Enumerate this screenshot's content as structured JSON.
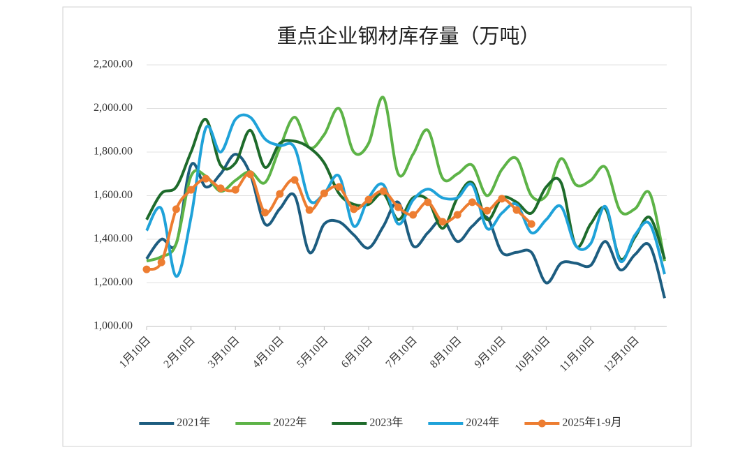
{
  "chart_data": {
    "type": "line",
    "title": "重点企业钢材库存量（万吨）",
    "categories": [
      "1月10日",
      null,
      null,
      "2月10日",
      null,
      null,
      "3月10日",
      null,
      null,
      "4月10日",
      null,
      null,
      "5月10日",
      null,
      null,
      "6月10日",
      null,
      null,
      "7月10日",
      null,
      null,
      "8月10日",
      null,
      null,
      "9月10日",
      null,
      null,
      "10月10日",
      null,
      null,
      "11月10日",
      null,
      null,
      "12月10日",
      null,
      null
    ],
    "ylim": [
      1000,
      2200
    ],
    "yticks": [
      {
        "value": 1000,
        "label": "1,000.00"
      },
      {
        "value": 1200,
        "label": "1,200.00"
      },
      {
        "value": 1400,
        "label": "1,400.00"
      },
      {
        "value": 1600,
        "label": "1,600.00"
      },
      {
        "value": 1800,
        "label": "1,800.00"
      },
      {
        "value": 2000,
        "label": "2,000.00"
      },
      {
        "value": 2200,
        "label": "2,200.00"
      }
    ],
    "grid": true,
    "smooth": true,
    "legend": "bottom",
    "series": [
      {
        "name": "2021年",
        "color": "#1d5d80",
        "values": [
          1310,
          1400,
          1380,
          1740,
          1640,
          1700,
          1790,
          1700,
          1470,
          1540,
          1600,
          1340,
          1470,
          1480,
          1420,
          1360,
          1460,
          1570,
          1370,
          1430,
          1490,
          1390,
          1460,
          1500,
          1340,
          1340,
          1340,
          1200,
          1290,
          1290,
          1280,
          1390,
          1260,
          1330,
          1370,
          1130
        ]
      },
      {
        "name": "2022年",
        "color": "#5db347",
        "values": [
          1300,
          1320,
          1380,
          1690,
          1690,
          1620,
          1670,
          1710,
          1660,
          1820,
          1960,
          1820,
          1880,
          2000,
          1800,
          1840,
          2050,
          1700,
          1790,
          1900,
          1680,
          1700,
          1740,
          1600,
          1720,
          1770,
          1600,
          1600,
          1770,
          1650,
          1670,
          1730,
          1530,
          1540,
          1610,
          1300
        ]
      },
      {
        "name": "2023年",
        "color": "#1e6b2b",
        "values": [
          1490,
          1610,
          1640,
          1800,
          1950,
          1740,
          1750,
          1900,
          1730,
          1840,
          1850,
          1820,
          1750,
          1610,
          1560,
          1560,
          1610,
          1490,
          1590,
          1580,
          1450,
          1590,
          1660,
          1490,
          1590,
          1570,
          1520,
          1640,
          1660,
          1370,
          1470,
          1540,
          1310,
          1410,
          1500,
          1310
        ]
      },
      {
        "name": "2024年",
        "color": "#1fa2d9",
        "values": [
          1440,
          1540,
          1230,
          1500,
          1910,
          1800,
          1950,
          1960,
          1860,
          1830,
          1820,
          1580,
          1610,
          1690,
          1460,
          1590,
          1650,
          1470,
          1580,
          1630,
          1590,
          1590,
          1650,
          1450,
          1520,
          1560,
          1430,
          1490,
          1550,
          1370,
          1380,
          1550,
          1300,
          1420,
          1470,
          1240
        ]
      },
      {
        "name": "2025年1-9月",
        "color": "#ed7d31",
        "marker": "circle",
        "values": [
          1262,
          1294,
          1538,
          1627,
          1678,
          1634,
          1627,
          1698,
          1522,
          1608,
          1672,
          1534,
          1611,
          1640,
          1538,
          1582,
          1621,
          1547,
          1512,
          1570,
          1480,
          1512,
          1570,
          1531,
          1586,
          1534,
          1470,
          null,
          null,
          null,
          null,
          null,
          null,
          null,
          null,
          null
        ]
      }
    ]
  }
}
